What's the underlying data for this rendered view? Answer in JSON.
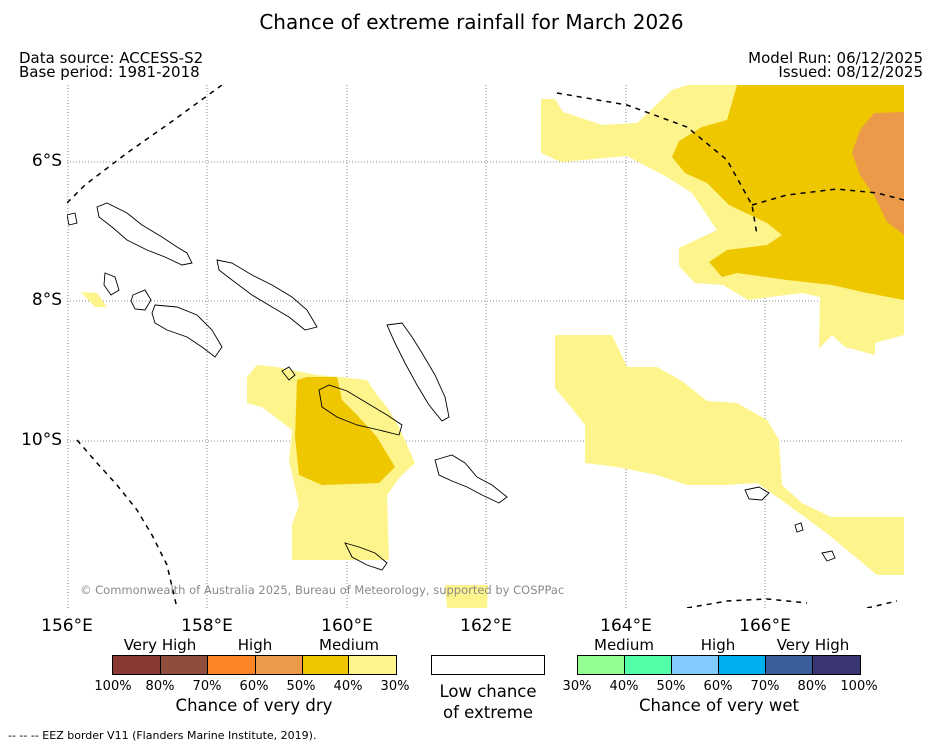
{
  "title": "Chance of extreme rainfall for March 2026",
  "header": {
    "data_source": "Data source: ACCESS-S2",
    "base_period": "Base period: 1981-2018",
    "model_run": "Model Run: 06/12/2025",
    "issued": "Issued: 08/12/2025"
  },
  "axes": {
    "lon_labels": [
      "156°E",
      "158°E",
      "160°E",
      "162°E",
      "164°E",
      "166°E"
    ],
    "lat_labels": [
      "6°S",
      "8°S",
      "10°S"
    ]
  },
  "copyright": "© Commonwealth of Australia 2025, Bureau of Meteorology, supported by COSPPac",
  "legend": {
    "dry": {
      "categories": [
        "Very High",
        "High",
        "Medium"
      ],
      "colors": [
        "#8b3a33",
        "#8f4e3c",
        "#ff8427",
        "#eb9a4a",
        "#eec700",
        "#fdf48c"
      ],
      "percents": [
        "100%",
        "80%",
        "70%",
        "60%",
        "50%",
        "40%",
        "30%"
      ],
      "caption": "Chance of very dry"
    },
    "low": {
      "line1": "Low chance",
      "line2": "of extreme",
      "color": "#ffffff"
    },
    "wet": {
      "categories": [
        "Medium",
        "High",
        "Very High"
      ],
      "colors": [
        "#93ff93",
        "#54ffaa",
        "#82cbff",
        "#00b0ee",
        "#3a5e9c",
        "#3a3674"
      ],
      "percents": [
        "30%",
        "40%",
        "50%",
        "60%",
        "70%",
        "80%",
        "100%"
      ],
      "caption": "Chance of very wet"
    }
  },
  "footnote": "--  --  -- EEZ border V11 (Flanders Marine Institute, 2019).",
  "map_colors": {
    "medium_dry_light": "#fdf48c",
    "medium_dry_dark": "#eec700",
    "high_dry": "#eb9a4a"
  }
}
